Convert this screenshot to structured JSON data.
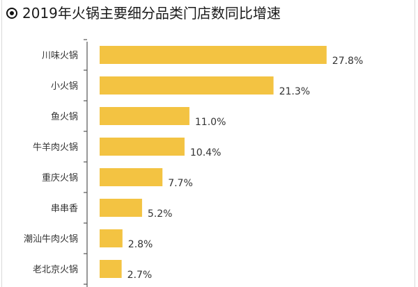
{
  "title_icon": "bullet-circle-icon",
  "chart_data": {
    "type": "bar",
    "orientation": "horizontal",
    "title": "2019年火锅主要细分品类门店数同比增速",
    "categories": [
      "川味火锅",
      "小火锅",
      "鱼火锅",
      "牛羊肉火锅",
      "重庆火锅",
      "串串香",
      "潮汕牛肉火锅",
      "老北京火锅"
    ],
    "values": [
      27.8,
      21.3,
      11.0,
      10.4,
      7.7,
      5.2,
      2.8,
      2.7
    ],
    "value_labels": [
      "27.8%",
      "21.3%",
      "11.0%",
      "10.4%",
      "7.7%",
      "5.2%",
      "2.8%",
      "2.7%"
    ],
    "xlim": [
      0,
      39
    ],
    "grid": false,
    "bar_color": "#F3C342",
    "axis_color": "#555555",
    "label_color": "#333333"
  }
}
